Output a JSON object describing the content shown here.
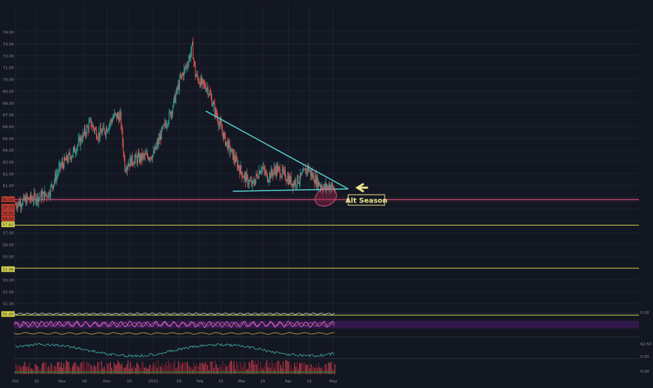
{
  "chart_data": {
    "type": "candlestick",
    "series_note": "",
    "x_ticks": [
      "Oct",
      "15",
      "Nov",
      "16",
      "Dec",
      "15",
      "2021",
      "18",
      "Feb",
      "15",
      "Mar",
      "15",
      "Apr",
      "15",
      "May"
    ],
    "y_ticks": [
      "74.00",
      "73.00",
      "72.00",
      "71.00",
      "70.00",
      "69.00",
      "68.00",
      "67.00",
      "66.00",
      "65.00",
      "64.00",
      "63.00",
      "62.00",
      "61.00",
      "60.00",
      "59.00",
      "58.00",
      "57.00",
      "56.00",
      "55.00",
      "54.00",
      "53.00",
      "52.00",
      "51.00",
      "50.00"
    ],
    "ylim": [
      49.6,
      75.4
    ],
    "y_badges": [
      {
        "value": 59.82,
        "label": "60.67",
        "color": "#c0392b"
      },
      {
        "value": 59.2,
        "label": "59.33",
        "color": "#c0392b"
      },
      {
        "value": 58.7,
        "label": "58.66",
        "color": "#c0392b"
      },
      {
        "value": 58.2,
        "label": "58.02",
        "color": "#c0392b"
      },
      {
        "value": 57.7,
        "label": "57.63",
        "color": "#d8d84a"
      },
      {
        "value": 53.9,
        "label": "53.98",
        "color": "#d8d84a"
      },
      {
        "value": 50.1,
        "label": "50.00",
        "color": "#d8d84a"
      }
    ],
    "price_path": [
      {
        "d": 0,
        "p": 59.4
      },
      {
        "d": 8,
        "p": 59.8
      },
      {
        "d": 15,
        "p": 60.0
      },
      {
        "d": 22,
        "p": 60.3
      },
      {
        "d": 30,
        "p": 62.6
      },
      {
        "d": 38,
        "p": 63.7
      },
      {
        "d": 45,
        "p": 65.2
      },
      {
        "d": 50,
        "p": 66.3
      },
      {
        "d": 55,
        "p": 65.3
      },
      {
        "d": 60,
        "p": 65.7
      },
      {
        "d": 66,
        "p": 66.9
      },
      {
        "d": 70,
        "p": 66.8
      },
      {
        "d": 73,
        "p": 62.6
      },
      {
        "d": 77,
        "p": 63.1
      },
      {
        "d": 85,
        "p": 63.4
      },
      {
        "d": 92,
        "p": 63.6
      },
      {
        "d": 98,
        "p": 65.6
      },
      {
        "d": 104,
        "p": 67.3
      },
      {
        "d": 110,
        "p": 70.0
      },
      {
        "d": 114,
        "p": 71.1
      },
      {
        "d": 118,
        "p": 72.7
      },
      {
        "d": 120,
        "p": 70.4
      },
      {
        "d": 124,
        "p": 69.6
      },
      {
        "d": 128,
        "p": 69.3
      },
      {
        "d": 134,
        "p": 67.0
      },
      {
        "d": 140,
        "p": 64.8
      },
      {
        "d": 146,
        "p": 63.3
      },
      {
        "d": 152,
        "p": 61.8
      },
      {
        "d": 158,
        "p": 61.0
      },
      {
        "d": 164,
        "p": 62.6
      },
      {
        "d": 168,
        "p": 61.7
      },
      {
        "d": 174,
        "p": 62.4
      },
      {
        "d": 180,
        "p": 61.8
      },
      {
        "d": 185,
        "p": 61.2
      },
      {
        "d": 190,
        "p": 61.6
      },
      {
        "d": 195,
        "p": 62.5
      },
      {
        "d": 198,
        "p": 61.8
      },
      {
        "d": 202,
        "p": 61.2
      },
      {
        "d": 206,
        "p": 60.8
      },
      {
        "d": 210,
        "p": 61.0
      },
      {
        "d": 213,
        "p": 60.6
      }
    ],
    "x_ticks_days": [
      0,
      14,
      31,
      46,
      61,
      76,
      92,
      109,
      123,
      137,
      151,
      165,
      182,
      196,
      212
    ],
    "triangle": {
      "upper": [
        {
          "d": 127,
          "p": 67.3
        },
        {
          "d": 222,
          "p": 60.7
        }
      ],
      "lower": [
        {
          "d": 145,
          "p": 60.5
        },
        {
          "d": 222,
          "p": 60.7
        }
      ]
    },
    "ellipse_center": {
      "d": 207,
      "p": 60.0
    },
    "h_lines": [
      {
        "p": 59.82,
        "color": "#e0507a"
      },
      {
        "p": 57.63,
        "color": "#d8d84a"
      },
      {
        "p": 53.98,
        "color": "#d8d84a"
      },
      {
        "p": 50.0,
        "color": "#d8d84a"
      }
    ],
    "annotation": "Alt Season",
    "indicator_labels": [
      "0.00",
      "0.00",
      "62.50",
      "0.00"
    ]
  }
}
